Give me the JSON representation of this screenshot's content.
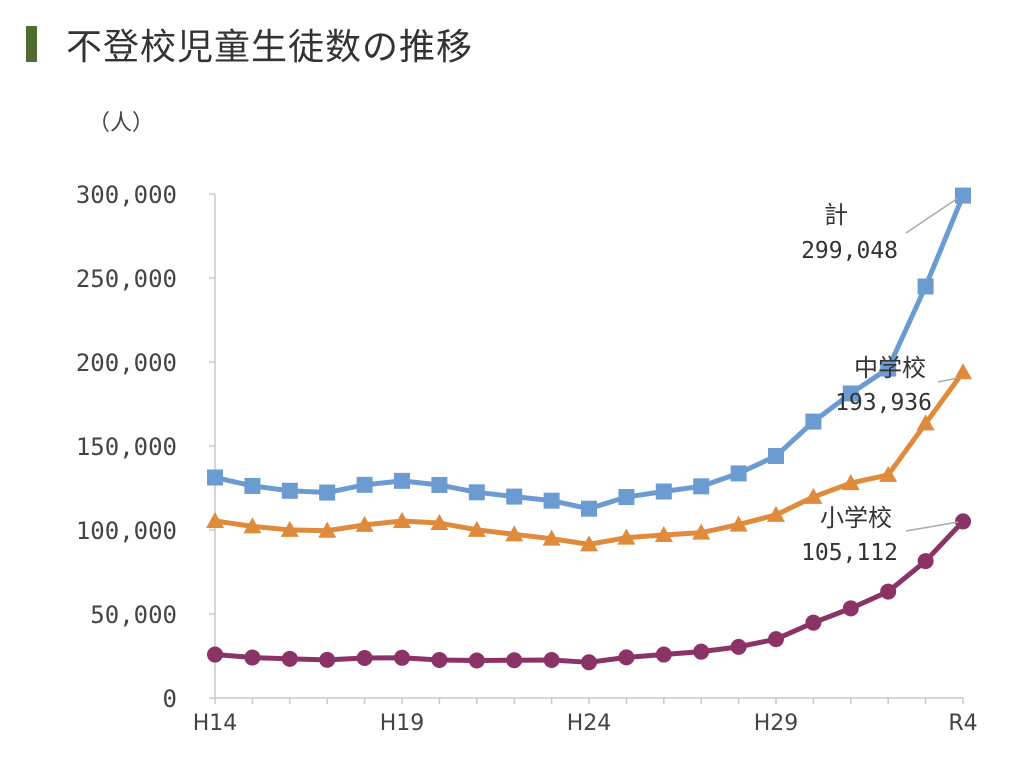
{
  "title": "不登校児童生徒数の推移",
  "colors": {
    "title_bar": "#4f6b2f"
  },
  "chart_data": {
    "type": "line",
    "ylabel": "（人）",
    "ylim": [
      0,
      300000
    ],
    "yticks": [
      0,
      50000,
      100000,
      150000,
      200000,
      250000,
      300000
    ],
    "ytick_labels": [
      "0",
      "50,000",
      "100,000",
      "150,000",
      "200,000",
      "250,000",
      "300,000"
    ],
    "categories": [
      "H14",
      "H15",
      "H16",
      "H17",
      "H18",
      "H19",
      "H20",
      "H21",
      "H22",
      "H23",
      "H24",
      "H25",
      "H26",
      "H27",
      "H28",
      "H29",
      "H30",
      "R1",
      "R2",
      "R3",
      "R4"
    ],
    "xtick_labels": [
      "H14",
      "",
      "",
      "",
      "",
      "H19",
      "",
      "",
      "",
      "",
      "H24",
      "",
      "",
      "",
      "",
      "H29",
      "",
      "",
      "",
      "",
      "R4"
    ],
    "grid": false,
    "series": [
      {
        "name": "計",
        "color": "#6b9bd1",
        "marker": "square",
        "values": [
          131252,
          126226,
          123358,
          122287,
          126894,
          129255,
          126805,
          122432,
          119891,
          117458,
          112689,
          119617,
          122897,
          125991,
          133683,
          144031,
          164528,
          181272,
          196127,
          244940,
          299048
        ],
        "end_label": "299,048"
      },
      {
        "name": "中学校",
        "color": "#e08a3c",
        "marker": "triangle",
        "values": [
          105383,
          102149,
          100040,
          99578,
          103069,
          105328,
          104153,
          100105,
          97428,
          94836,
          91446,
          95442,
          97033,
          98408,
          103235,
          108999,
          119687,
          127922,
          132777,
          163442,
          193936
        ],
        "end_label": "193,936"
      },
      {
        "name": "小学校",
        "color": "#8b3366",
        "marker": "circle",
        "values": [
          25869,
          24077,
          23318,
          22709,
          23825,
          23927,
          22652,
          22327,
          22463,
          22622,
          21243,
          24175,
          25864,
          27583,
          30448,
          35032,
          44841,
          53350,
          63350,
          81498,
          105112
        ],
        "end_label": "105,112"
      }
    ]
  }
}
